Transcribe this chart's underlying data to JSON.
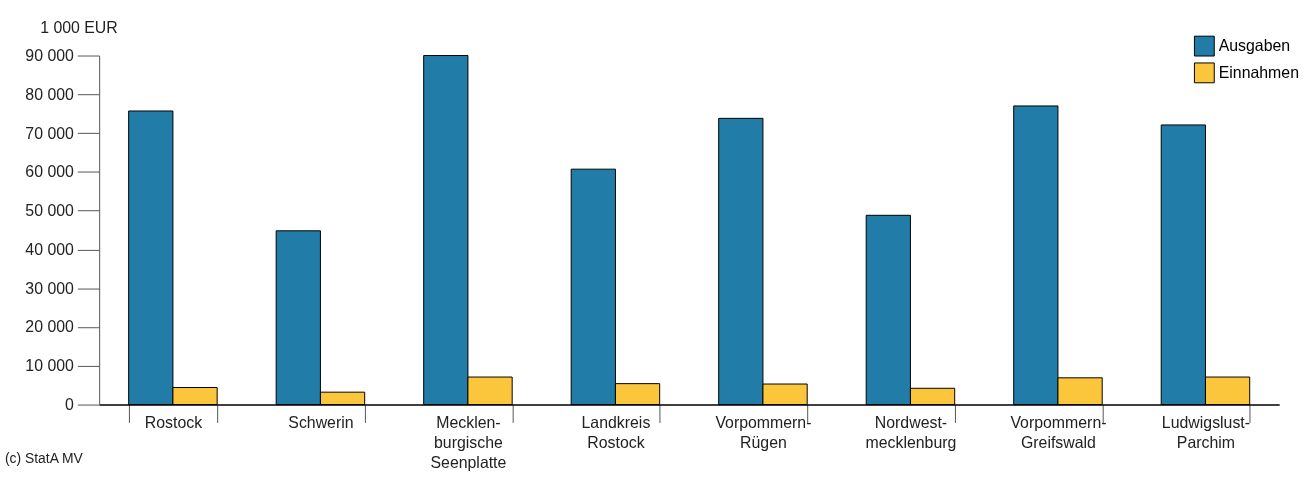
{
  "chart_data": {
    "type": "bar",
    "ylabel": "1 000 EUR",
    "categories": [
      "Rostock",
      "Schwerin",
      "Mecklen-\nburgische\nSeenplatte",
      "Landkreis\nRostock",
      "Vorpommern-\nRügen",
      "Nordwest-\nmecklenburg",
      "Vorpommern-\nGreifswald",
      "Ludwigslust-\nParchim"
    ],
    "series": [
      {
        "name": "Ausgaben",
        "color": "#217ca8",
        "values": [
          75700,
          44800,
          90000,
          60700,
          73800,
          48800,
          77000,
          72100
        ]
      },
      {
        "name": "Einnahmen",
        "color": "#fcc63c",
        "values": [
          4400,
          3200,
          7100,
          5400,
          5300,
          4200,
          6900,
          7100
        ]
      }
    ],
    "ylim": [
      0,
      90000
    ],
    "yticks": [
      {
        "value": 0,
        "label": "0"
      },
      {
        "value": 10000,
        "label": "10 000"
      },
      {
        "value": 20000,
        "label": "20 000"
      },
      {
        "value": 30000,
        "label": "30 000"
      },
      {
        "value": 40000,
        "label": "40 000"
      },
      {
        "value": 50000,
        "label": "50 000"
      },
      {
        "value": 60000,
        "label": "60 000"
      },
      {
        "value": 70000,
        "label": "70 000"
      },
      {
        "value": 80000,
        "label": "80 000"
      },
      {
        "value": 90000,
        "label": "90 000"
      }
    ],
    "grid": false,
    "legend": "top right",
    "annotations": [
      "(c) StatA MV"
    ]
  }
}
